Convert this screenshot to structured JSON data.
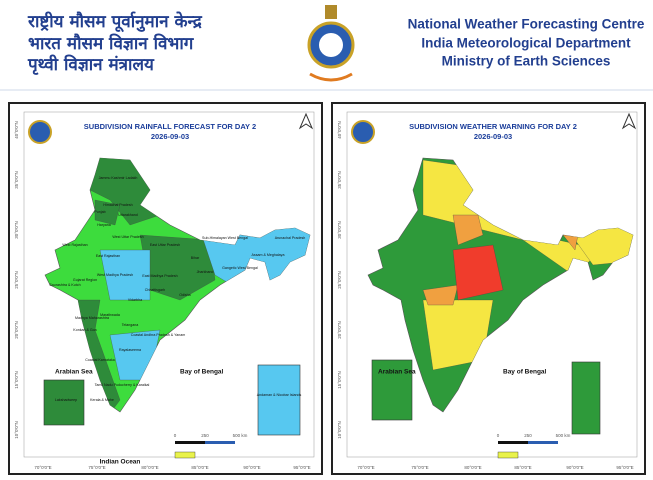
{
  "header": {
    "hindi_lines": [
      "राष्ट्रीय मौसम पूर्वानुमान केन्द्र",
      "भारत मौसम विज्ञान विभाग",
      "पृथ्वी विज्ञान मंत्रालय"
    ],
    "english_lines": [
      "National Weather Forecasting Centre",
      "India Meteorological Department",
      "Ministry of Earth Sciences"
    ]
  },
  "panels": [
    {
      "title": "SUBDIVISION RAINFALL FORECAST FOR DAY 2",
      "date": "2026-09-03",
      "arabian_sea": "Arabian Sea",
      "bay": "Bay of Bengal",
      "ocean": "Indian Ocean",
      "region_labels": [
        "Jammu Kashmir Ladakh",
        "Himachal Pradesh",
        "Punjab",
        "Uttarakhand",
        "Haryana",
        "West Uttar Pradesh",
        "East Uttar Pradesh",
        "West Rajasthan",
        "East Rajasthan",
        "Sub-Himalayan West Bengal",
        "Arunachal Pradesh",
        "Assam & Meghalaya",
        "Bihar",
        "Gangetic West Bengal",
        "Jharkhand",
        "West Madhya Pradesh",
        "East Madhya Pradesh",
        "Gujarat Region",
        "Saurashtra & Kutch",
        "Chhattisgarh",
        "Odisha",
        "Vidarbha",
        "Marathwada",
        "Madhya Maharashtra",
        "Konkan & Goa",
        "Telangana",
        "Coastal Andhra Pradesh & Yanam",
        "Rayalaseema",
        "Coastal Karnataka",
        "Tamil Nadu Puducherry & Karaikal",
        "Kerala & Mahe",
        "Lakshadweep",
        "Andaman & Nicobar Islands"
      ],
      "scale": [
        "0",
        "250",
        "500 km"
      ],
      "lat_labels": [
        "40°0'0\"N",
        "35°0'0\"N",
        "30°0'0\"N",
        "25°0'0\"N",
        "20°0'0\"N",
        "15°0'0\"N",
        "10°0'0\"N"
      ],
      "lon_labels": [
        "70°0'0\"E",
        "75°0'0\"E",
        "80°0'0\"E",
        "85°0'0\"E",
        "90°0'0\"E",
        "95°0'0\"E"
      ]
    },
    {
      "title": "SUBDIVISION WEATHER WARNING FOR DAY 2",
      "date": "2026-09-03",
      "arabian_sea": "Arabian Sea",
      "bay": "Bay of Bengal",
      "scale": [
        "0",
        "250",
        "500 km"
      ],
      "lat_labels": [
        "40°0'0\"N",
        "35°0'0\"N",
        "30°0'0\"N",
        "25°0'0\"N",
        "20°0'0\"N",
        "15°0'0\"N",
        "10°0'0\"N"
      ],
      "lon_labels": [
        "70°0'0\"E",
        "75°0'0\"E",
        "80°0'0\"E",
        "85°0'0\"E",
        "90°0'0\"E",
        "95°0'0\"E"
      ]
    }
  ]
}
